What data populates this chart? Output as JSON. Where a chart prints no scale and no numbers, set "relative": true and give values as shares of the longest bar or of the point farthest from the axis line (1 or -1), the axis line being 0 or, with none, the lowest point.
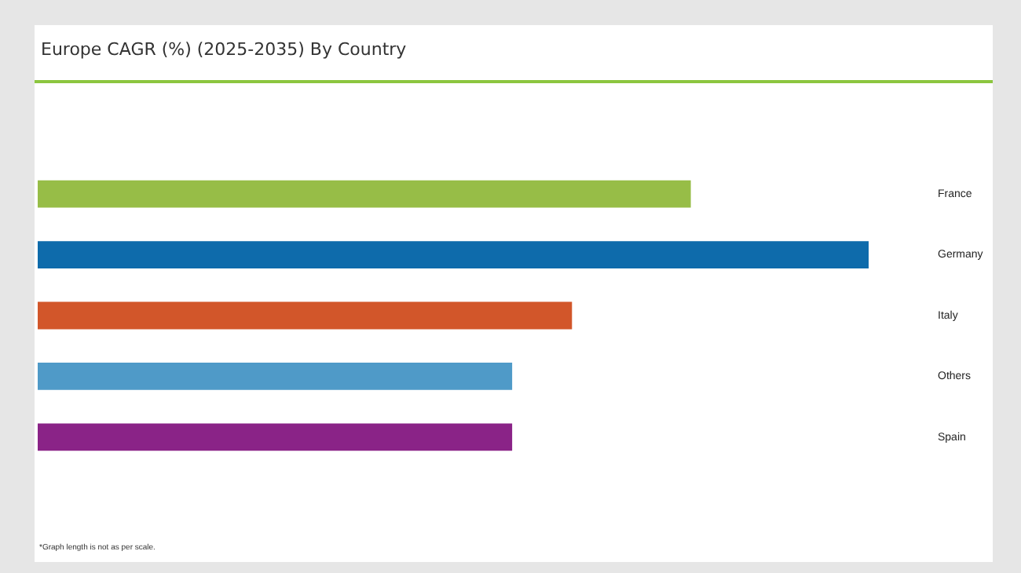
{
  "chart_data": {
    "type": "bar",
    "title": "Europe CAGR (%) (2025-2035) By Country",
    "orientation": "horizontal",
    "relative": true,
    "categories": [
      "France",
      "Germany",
      "Italy",
      "Others",
      "Spain"
    ],
    "values": [
      0.786,
      1,
      0.643,
      0.571,
      0.571
    ],
    "colors": [
      "#97bd47",
      "#0e6bab",
      "#d2562a",
      "#4f9ac8",
      "#8a2387"
    ],
    "grid": false,
    "legend": false,
    "annotations": [
      "*Graph length is not as per scale."
    ]
  }
}
